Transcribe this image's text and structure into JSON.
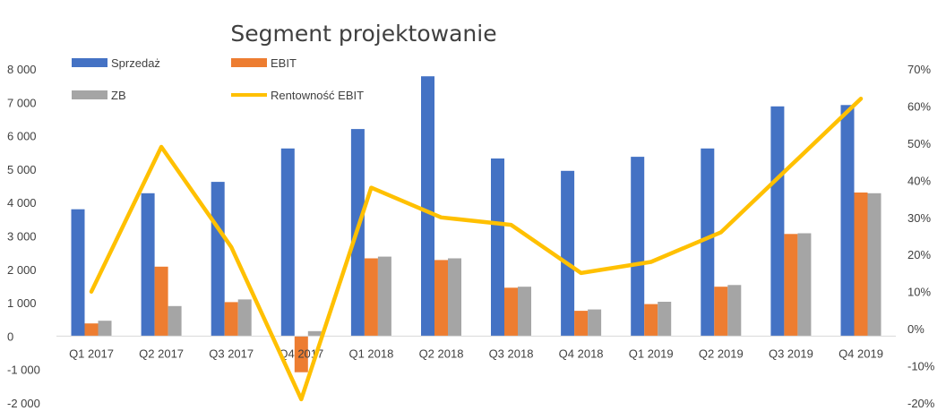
{
  "chart_data": {
    "type": "bar",
    "title": "Segment  projektowanie",
    "categories": [
      "Q1 2017",
      "Q2 2017",
      "Q3 2017",
      "Q4 2017",
      "Q1 2018",
      "Q2 2018",
      "Q3 2018",
      "Q4 2018",
      "Q1 2019",
      "Q2 2019",
      "Q3 2019",
      "Q4 2019"
    ],
    "series": [
      {
        "name": "Sprzedaż",
        "kind": "bar",
        "axis": "left",
        "color": "#4472C4",
        "values": [
          3800,
          4280,
          4620,
          5620,
          6200,
          7780,
          5320,
          4950,
          5370,
          5620,
          6880,
          6920
        ]
      },
      {
        "name": "EBIT",
        "kind": "bar",
        "axis": "left",
        "color": "#ED7D31",
        "values": [
          380,
          2080,
          1020,
          -1080,
          2330,
          2280,
          1450,
          760,
          960,
          1480,
          3060,
          4300
        ]
      },
      {
        "name": "ZB",
        "kind": "bar",
        "axis": "left",
        "color": "#A5A5A5",
        "values": [
          460,
          900,
          1100,
          150,
          2380,
          2330,
          1480,
          800,
          1030,
          1530,
          3080,
          4280
        ]
      },
      {
        "name": "Rentowność EBIT",
        "kind": "line",
        "axis": "right",
        "color": "#FFC000",
        "values": [
          0.1,
          0.49,
          0.22,
          -0.19,
          0.38,
          0.3,
          0.28,
          0.15,
          0.18,
          0.26,
          0.44,
          0.62
        ]
      }
    ],
    "y_left": {
      "min": -2000,
      "max": 8000,
      "step": 1000,
      "ticks": [
        "8 000",
        "7 000",
        "6 000",
        "5 000",
        "4 000",
        "3 000",
        "2 000",
        "1 000",
        "0",
        "-1 000",
        "-2 000"
      ]
    },
    "y_right": {
      "min": -0.2,
      "max": 0.7,
      "step": 0.1,
      "ticks": [
        "70%",
        "60%",
        "50%",
        "40%",
        "30%",
        "20%",
        "10%",
        "0%",
        "-10%",
        "-20%"
      ]
    },
    "grid": false,
    "legend_placement": "top-left"
  }
}
